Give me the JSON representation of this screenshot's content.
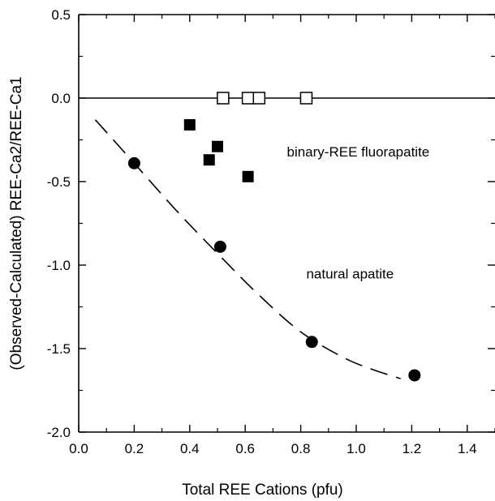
{
  "chart_data": {
    "type": "scatter",
    "xlabel": "Total REE Cations (pfu)",
    "ylabel": "(Observed-Calculated) REE-Ca2/REE-Ca1",
    "xlim": [
      0.0,
      1.5
    ],
    "ylim": [
      -2.0,
      0.5
    ],
    "x_ticks": [
      0.0,
      0.2,
      0.4,
      0.6,
      0.8,
      1.0,
      1.2,
      1.4
    ],
    "x_tick_labels": [
      "0.0",
      "0.2",
      "0.4",
      "0.6",
      "0.8",
      "1.0",
      "1.2",
      "1.4"
    ],
    "y_ticks": [
      0.5,
      0.0,
      -0.5,
      -1.0,
      -1.5,
      -2.0
    ],
    "y_tick_labels": [
      "0.5",
      "0.0",
      "-0.5",
      "-1.0",
      "-1.5",
      "-2.0"
    ],
    "grid": false,
    "reference_line_y": 0.0,
    "series": [
      {
        "marker": "open-square",
        "points": [
          {
            "x": 0.52,
            "y": 0.0
          },
          {
            "x": 0.61,
            "y": 0.0
          },
          {
            "x": 0.65,
            "y": 0.0
          },
          {
            "x": 0.82,
            "y": 0.0
          }
        ]
      },
      {
        "marker": "filled-square",
        "points": [
          {
            "x": 0.4,
            "y": -0.16
          },
          {
            "x": 0.47,
            "y": -0.37
          },
          {
            "x": 0.5,
            "y": -0.29
          },
          {
            "x": 0.61,
            "y": -0.47
          }
        ]
      },
      {
        "marker": "filled-circle",
        "points": [
          {
            "x": 0.2,
            "y": -0.39
          },
          {
            "x": 0.51,
            "y": -0.89
          },
          {
            "x": 0.84,
            "y": -1.46
          },
          {
            "x": 1.21,
            "y": -1.66
          }
        ]
      }
    ],
    "fit_curve": {
      "style": "dashed",
      "points": [
        {
          "x": 0.06,
          "y": -0.13
        },
        {
          "x": 0.2,
          "y": -0.39
        },
        {
          "x": 0.35,
          "y": -0.67
        },
        {
          "x": 0.5,
          "y": -0.93
        },
        {
          "x": 0.65,
          "y": -1.18
        },
        {
          "x": 0.8,
          "y": -1.4
        },
        {
          "x": 0.95,
          "y": -1.55
        },
        {
          "x": 1.05,
          "y": -1.62
        },
        {
          "x": 1.16,
          "y": -1.68
        }
      ]
    },
    "annotations": [
      {
        "text": "binary-REE fluorapatite",
        "x": 0.75,
        "y": -0.35
      },
      {
        "text": "natural apatite",
        "x": 0.82,
        "y": -1.08
      }
    ]
  }
}
